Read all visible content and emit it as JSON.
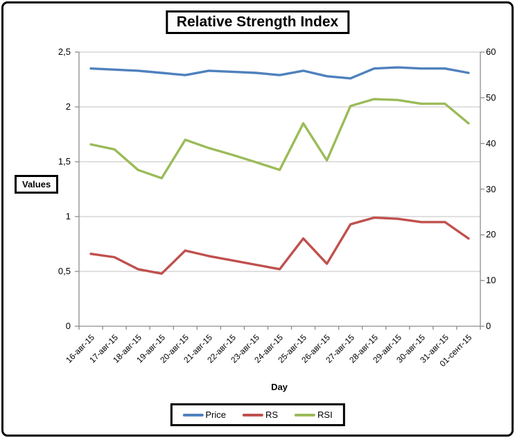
{
  "title": "Relative Strength Index",
  "chart_data": {
    "type": "line",
    "title": "Relative Strength Index",
    "xlabel": "Day",
    "ylabel": "Values",
    "grid": true,
    "legend_position": "bottom",
    "categories": [
      "16-авг-15",
      "17-авг-15",
      "18-авг-15",
      "19-авг-15",
      "20-авг-15",
      "21-авг-15",
      "22-авг-15",
      "23-авг-15",
      "24-авг-15",
      "25-авг-15",
      "26-авг-15",
      "27-авг-15",
      "28-авг-15",
      "29-авг-15",
      "30-авг-15",
      "31-авг-15",
      "01-сент-15"
    ],
    "series": [
      {
        "name": "Price",
        "axis": "left",
        "color": "#4F81BD",
        "values": [
          2.35,
          2.34,
          2.33,
          2.31,
          2.29,
          2.33,
          2.32,
          2.31,
          2.29,
          2.33,
          2.28,
          2.26,
          2.35,
          2.36,
          2.35,
          2.35,
          2.31
        ]
      },
      {
        "name": "RS",
        "axis": "left",
        "color": "#C0504D",
        "values": [
          0.66,
          0.63,
          0.52,
          0.48,
          0.69,
          0.64,
          0.6,
          0.56,
          0.52,
          0.8,
          0.57,
          0.93,
          0.99,
          0.98,
          0.95,
          0.95,
          0.8
        ]
      },
      {
        "name": "RSI",
        "axis": "right",
        "color": "#9BBB59",
        "values": [
          39.8,
          38.7,
          34.2,
          32.4,
          40.8,
          39.0,
          37.5,
          35.9,
          34.2,
          44.4,
          36.3,
          48.2,
          49.7,
          49.5,
          48.7,
          48.7,
          44.4
        ]
      }
    ],
    "left_axis": {
      "min": 0,
      "max": 2.5,
      "step": 0.5,
      "tick_labels": [
        "0",
        "0,5",
        "1",
        "1,5",
        "2",
        "2,5"
      ]
    },
    "right_axis": {
      "min": 0,
      "max": 60,
      "step": 10,
      "tick_labels": [
        "0",
        "10",
        "20",
        "30",
        "40",
        "50",
        "60"
      ]
    }
  },
  "legend": {
    "items": [
      {
        "label": "Price",
        "color": "#4F81BD"
      },
      {
        "label": "RS",
        "color": "#C0504D"
      },
      {
        "label": "RSI",
        "color": "#9BBB59"
      }
    ]
  },
  "style_colors": {
    "gridline": "#C0C0C0",
    "axis": "#8C8C8C",
    "text": "#000000"
  }
}
